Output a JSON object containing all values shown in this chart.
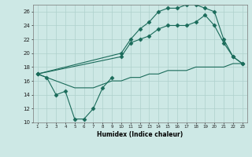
{
  "xlabel": "Humidex (Indice chaleur)",
  "ylabel": "",
  "bg_color": "#cde8e5",
  "grid_color": "#aed0cc",
  "line_color": "#1a6b5a",
  "xlim": [
    0.5,
    23.5
  ],
  "ylim": [
    10,
    27
  ],
  "yticks": [
    10,
    12,
    14,
    16,
    18,
    20,
    22,
    24,
    26
  ],
  "xticks": [
    1,
    2,
    3,
    4,
    5,
    6,
    7,
    8,
    9,
    10,
    11,
    12,
    13,
    14,
    15,
    16,
    17,
    18,
    19,
    20,
    21,
    22,
    23
  ],
  "series": [
    {
      "x": [
        1,
        2,
        3,
        4,
        5,
        6,
        7,
        8,
        9
      ],
      "y": [
        17.0,
        16.5,
        14.0,
        14.5,
        10.5,
        10.5,
        12.0,
        15.0,
        16.5
      ],
      "marker": "D",
      "markersize": 2.5
    },
    {
      "x": [
        1,
        10,
        11,
        12,
        13,
        14,
        15,
        16,
        17,
        18,
        19,
        20,
        21,
        22,
        23
      ],
      "y": [
        17.0,
        20.0,
        22.0,
        23.5,
        24.5,
        26.0,
        26.5,
        26.5,
        27.0,
        27.0,
        26.5,
        26.0,
        22.0,
        19.5,
        18.5
      ],
      "marker": "D",
      "markersize": 2.5
    },
    {
      "x": [
        1,
        10,
        11,
        12,
        13,
        14,
        15,
        16,
        17,
        18,
        19,
        20,
        21,
        22,
        23
      ],
      "y": [
        17.0,
        19.5,
        21.5,
        22.0,
        22.5,
        23.5,
        24.0,
        24.0,
        24.0,
        24.5,
        25.5,
        24.0,
        21.5,
        19.5,
        18.5
      ],
      "marker": "D",
      "markersize": 2.5
    },
    {
      "x": [
        1,
        2,
        3,
        4,
        5,
        6,
        7,
        8,
        9,
        10,
        11,
        12,
        13,
        14,
        15,
        16,
        17,
        18,
        19,
        20,
        21,
        22,
        23
      ],
      "y": [
        17.0,
        16.5,
        16.0,
        15.5,
        15.0,
        15.0,
        15.0,
        15.5,
        16.0,
        16.0,
        16.5,
        16.5,
        17.0,
        17.0,
        17.5,
        17.5,
        17.5,
        18.0,
        18.0,
        18.0,
        18.0,
        18.5,
        18.5
      ],
      "marker": null,
      "markersize": 0
    }
  ]
}
